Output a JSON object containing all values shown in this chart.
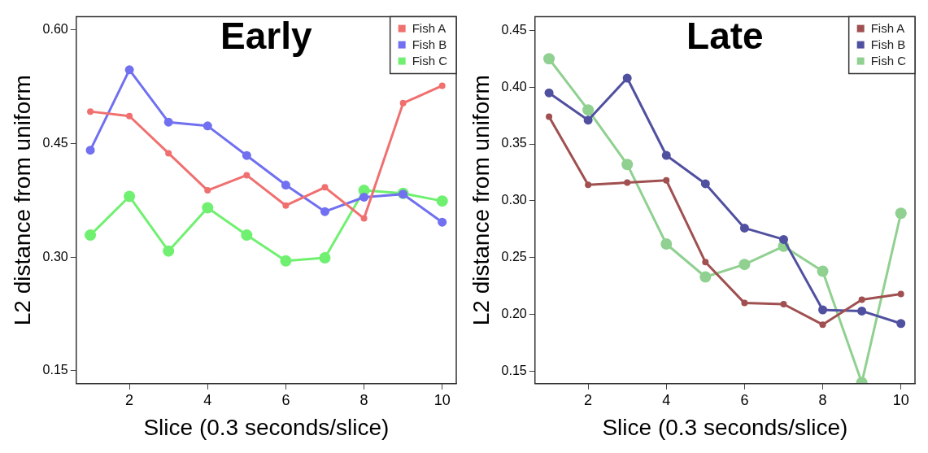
{
  "chart_data": [
    {
      "type": "line",
      "title": "Early",
      "xlabel": "Slice (0.3 seconds/slice)",
      "ylabel": "L2 distance from uniform",
      "x": [
        1,
        2,
        3,
        4,
        5,
        6,
        7,
        8,
        9,
        10
      ],
      "xlim": [
        0.64,
        10.36
      ],
      "xticks": [
        2,
        4,
        6,
        8,
        10
      ],
      "ylim": [
        0.133,
        0.617
      ],
      "yticks": [
        {
          "value": 0.15,
          "label": "0.15"
        },
        {
          "value": 0.3,
          "label": "0.30"
        },
        {
          "value": 0.45,
          "label": "0.45"
        },
        {
          "value": 0.6,
          "label": "0.60"
        }
      ],
      "grid": false,
      "legend": "top right",
      "marker": "circle",
      "line_style": "solid",
      "series": [
        {
          "name": "Fish A",
          "color": "#f07070",
          "values": [
            0.492,
            0.486,
            0.437,
            0.388,
            0.408,
            0.368,
            0.392,
            0.351,
            0.503,
            0.526
          ]
        },
        {
          "name": "Fish B",
          "color": "#7070f0",
          "values": [
            0.441,
            0.547,
            0.478,
            0.473,
            0.434,
            0.395,
            0.36,
            0.379,
            0.383,
            0.346
          ]
        },
        {
          "name": "Fish C",
          "color": "#70f070",
          "values": [
            0.329,
            0.38,
            0.308,
            0.365,
            0.329,
            0.295,
            0.299,
            0.388,
            0.384,
            0.374
          ]
        }
      ]
    },
    {
      "type": "line",
      "title": "Late",
      "xlabel": "Slice (0.3 seconds/slice)",
      "ylabel": "L2 distance from uniform",
      "x": [
        1,
        2,
        3,
        4,
        5,
        6,
        7,
        8,
        9,
        10
      ],
      "xlim": [
        0.64,
        10.36
      ],
      "xticks": [
        2,
        4,
        6,
        8,
        10
      ],
      "ylim": [
        0.139,
        0.462
      ],
      "yticks": [
        {
          "value": 0.15,
          "label": "0.15"
        },
        {
          "value": 0.2,
          "label": "0.20"
        },
        {
          "value": 0.25,
          "label": "0.25"
        },
        {
          "value": 0.3,
          "label": "0.30"
        },
        {
          "value": 0.35,
          "label": "0.35"
        },
        {
          "value": 0.4,
          "label": "0.40"
        },
        {
          "value": 0.45,
          "label": "0.45"
        }
      ],
      "grid": false,
      "legend": "top right",
      "marker": "circle",
      "line_style": "solid",
      "series": [
        {
          "name": "Fish A",
          "color": "#a05050",
          "values": [
            0.374,
            0.314,
            0.316,
            0.318,
            0.246,
            0.21,
            0.209,
            0.191,
            0.213,
            0.218
          ]
        },
        {
          "name": "Fish B",
          "color": "#5050a0",
          "values": [
            0.395,
            0.371,
            0.408,
            0.34,
            0.315,
            0.276,
            0.266,
            0.204,
            0.203,
            0.192
          ]
        },
        {
          "name": "Fish C",
          "color": "#90d090",
          "values": [
            0.425,
            0.38,
            0.332,
            0.262,
            0.233,
            0.244,
            0.26,
            0.238,
            0.14,
            0.289
          ]
        }
      ]
    }
  ]
}
